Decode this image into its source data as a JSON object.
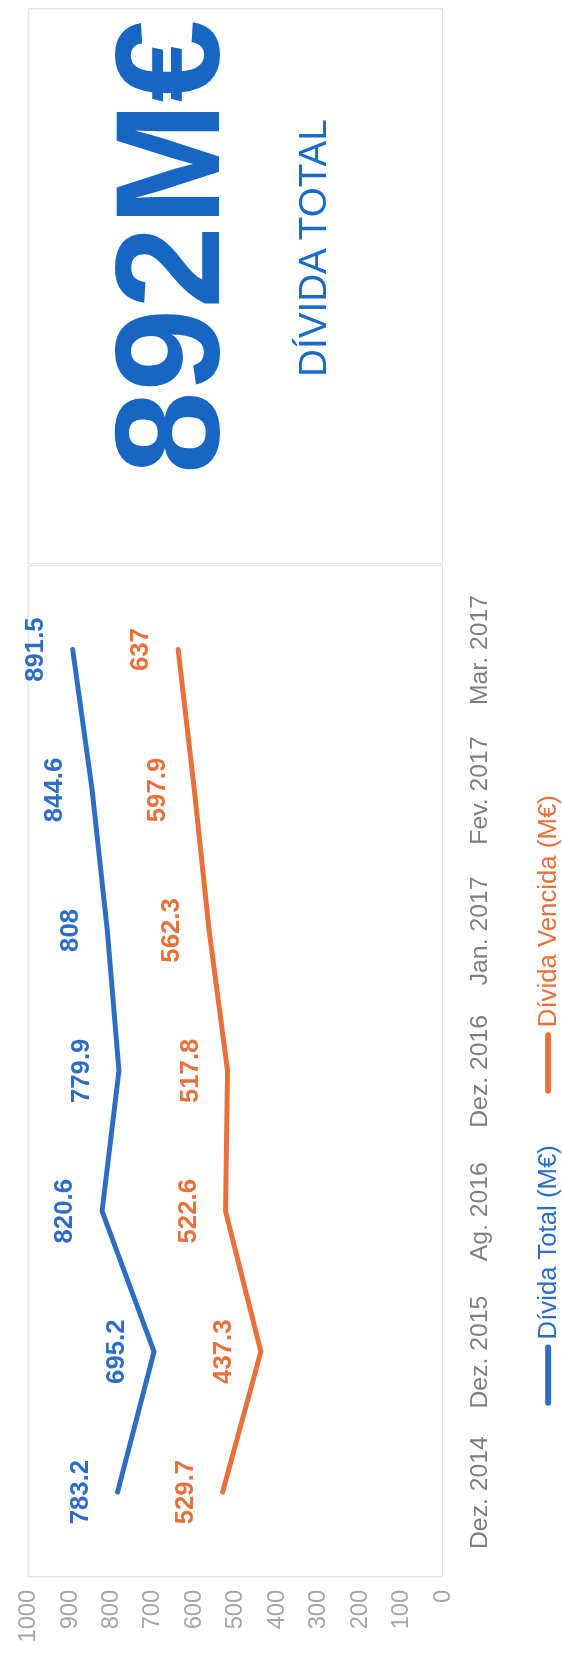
{
  "chart_data": [
    {
      "type": "other",
      "title": "892M€",
      "subtitle": "DÍVIDA TOTAL"
    },
    {
      "type": "line",
      "orientation": "horizontal",
      "categories": [
        "Mar. 2017",
        "Fev. 2017",
        "Jan. 2017",
        "Dez. 2016",
        "Ag. 2016",
        "Dez. 2015",
        "Dez. 2014"
      ],
      "series": [
        {
          "name": "Dívida Total (M€)",
          "color": "#2e6dc4",
          "values": [
            891.5,
            844.6,
            808,
            779.9,
            820.6,
            695.2,
            783.2
          ]
        },
        {
          "name": "Dívida Vencida (M€)",
          "color": "#e8703a",
          "values": [
            637,
            597.9,
            562.3,
            517.8,
            522.6,
            437.3,
            529.7
          ]
        }
      ],
      "xlim": [
        1000,
        0
      ],
      "xticks": [
        1000,
        900,
        800,
        700,
        600,
        500,
        400,
        300,
        200,
        100,
        0
      ],
      "data_labels": true,
      "legend": "right"
    }
  ]
}
